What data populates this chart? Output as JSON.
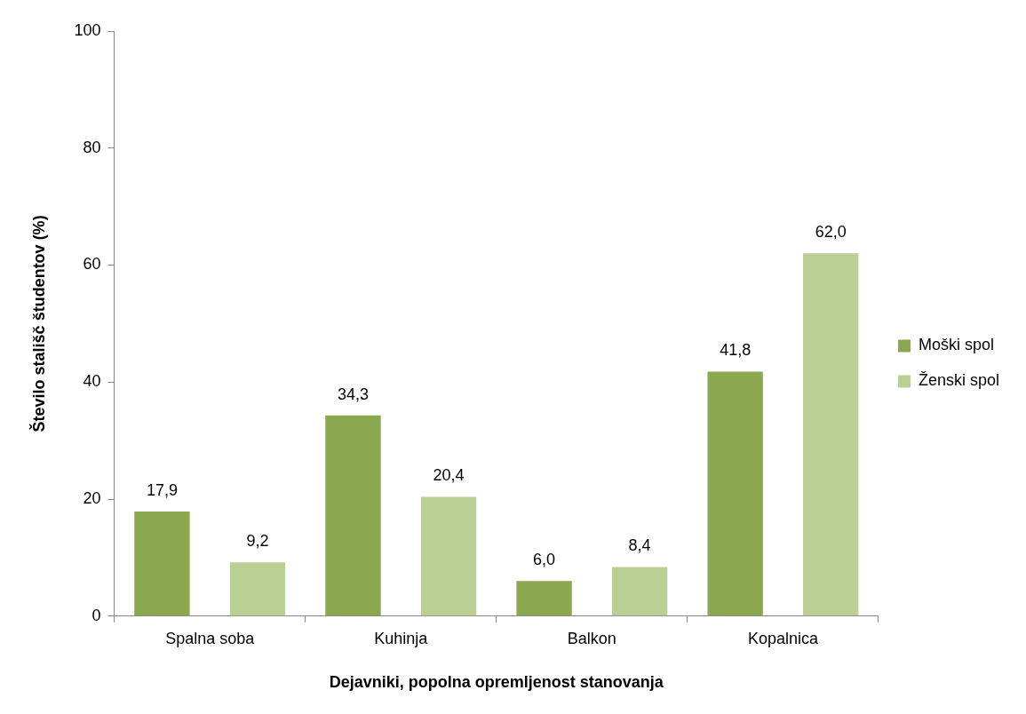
{
  "chart_data": {
    "type": "bar",
    "xlabel": "Dejavniki, popolna opremljenost stanovanja",
    "ylabel": "Število stališč študentov (%)",
    "categories": [
      "Spalna soba",
      "Kuhinja",
      "Balkon",
      "Kopalnica"
    ],
    "series": [
      {
        "name": "Moški spol",
        "color": "#8aa84f",
        "values": [
          17.9,
          34.3,
          6.0,
          41.8
        ],
        "value_labels": [
          "17,9",
          "34,3",
          "6,0",
          "41,8"
        ]
      },
      {
        "name": "Ženski spol",
        "color": "#b9cf94",
        "values": [
          9.2,
          20.4,
          8.4,
          62.0
        ],
        "value_labels": [
          "9,2",
          "20,4",
          "8,4",
          "62,0"
        ]
      }
    ],
    "ylim": [
      0,
      100
    ],
    "yticks": [
      0,
      20,
      40,
      60,
      80,
      100
    ],
    "grid": false,
    "legend": "right"
  }
}
